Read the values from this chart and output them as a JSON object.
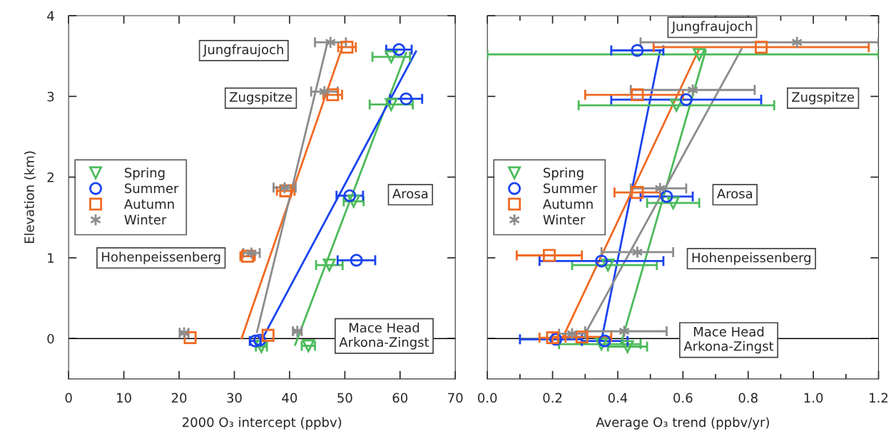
{
  "chart_data": [
    {
      "type": "scatter",
      "xlabel": "2000 O₃ intercept (ppbv)",
      "ylabel": "Elevation (km)",
      "xlim": [
        0,
        70
      ],
      "xticks": [
        0,
        10,
        20,
        30,
        40,
        50,
        60,
        70
      ],
      "ylim": [
        -0.5,
        4
      ],
      "yticks": [
        0,
        1,
        2,
        3,
        4
      ],
      "legend": "left",
      "grid": false,
      "ref_lines": [
        {
          "axis": "y",
          "value": 0,
          "color": "#000000"
        }
      ],
      "annotations": [
        "Jungfraujoch",
        "Zugspitze",
        "Arosa",
        "Hohenpeissenberg",
        "Mace Head\nArkona-Zingst"
      ],
      "series": [
        {
          "name": "Spring",
          "color": "#4cbb5a",
          "marker": "triangle",
          "x": [
            58.4,
            58.4,
            51.6,
            47.2,
            34.9,
            43.4
          ],
          "values": [
            3.49,
            2.9,
            1.7,
            0.91,
            -0.1,
            -0.09
          ],
          "xerrors": [
            3.4,
            3.9,
            1.8,
            2.4,
            1.0,
            1.2
          ]
        },
        {
          "name": "Summer",
          "color": "#1a43f0",
          "marker": "circle",
          "x": [
            59.8,
            61.1,
            50.9,
            52.1,
            33.8,
            34.6
          ],
          "values": [
            3.58,
            2.97,
            1.77,
            0.97,
            -0.03,
            -0.02
          ],
          "xerrors": [
            2.3,
            2.9,
            2.4,
            3.4,
            1.0,
            null
          ]
        },
        {
          "name": "Autumn",
          "color": "#f06a22",
          "marker": "square",
          "x": [
            50.4,
            47.8,
            39.3,
            32.4,
            22.0,
            36.1
          ],
          "values": [
            3.61,
            3.02,
            1.83,
            1.02,
            0.01,
            0.04
          ],
          "xerrors": [
            1.6,
            1.7,
            1.6,
            1.3,
            null,
            null
          ]
        },
        {
          "name": "Winter",
          "color": "#8c8c8c",
          "marker": "cross",
          "x": [
            47.4,
            46.3,
            39.1,
            33.1,
            20.9,
            41.4
          ],
          "values": [
            3.67,
            3.06,
            1.87,
            1.06,
            0.07,
            0.09
          ],
          "xerrors": [
            2.8,
            2.4,
            2.0,
            1.5,
            0.8,
            0.8
          ]
        },
        {
          "type": "line",
          "color": "#4cbb5a",
          "x": [
            41.0,
            61.1
          ],
          "values": [
            -0.08,
            3.54
          ]
        },
        {
          "type": "line",
          "color": "#1a43f0",
          "x": [
            35.4,
            62.9
          ],
          "values": [
            0.04,
            3.56
          ]
        },
        {
          "type": "line",
          "color": "#f06a22",
          "x": [
            31.3,
            49.5
          ],
          "values": [
            0.0,
            3.6
          ]
        },
        {
          "type": "line",
          "color": "#8c8c8c",
          "x": [
            34.1,
            46.8
          ],
          "values": [
            0.08,
            3.65
          ]
        }
      ]
    },
    {
      "type": "scatter",
      "xlabel": "Average O₃ trend (ppbv/yr)",
      "xlim": [
        0,
        1.2
      ],
      "xticks": [
        {
          "value": 0,
          "label": "0.0"
        },
        {
          "value": 0.1,
          "label": null
        },
        {
          "value": 0.2,
          "label": "0.2"
        },
        {
          "value": 0.3,
          "label": null
        },
        {
          "value": 0.4,
          "label": "0.4"
        },
        {
          "value": 0.5,
          "label": null
        },
        {
          "value": 0.6,
          "label": "0.6"
        },
        {
          "value": 0.7,
          "label": null
        },
        {
          "value": 0.8,
          "label": "0.8"
        },
        {
          "value": 0.9,
          "label": null
        },
        {
          "value": 1.0,
          "label": "1.0"
        },
        {
          "value": 1.1,
          "label": null
        },
        {
          "value": 1.2,
          "label": "1.2"
        }
      ],
      "ylim": [
        -0.5,
        4
      ],
      "yticks": [
        0,
        1,
        2,
        3,
        4
      ],
      "tick_labels": "x",
      "legend": "left",
      "grid": false,
      "ref_lines": [
        {
          "axis": "y",
          "value": 0,
          "color": "#000000"
        }
      ],
      "annotations": [
        "Jungfraujoch",
        "Zugspitze",
        "Arosa",
        "Hohenpeissenberg",
        "Mace Head\nArkona-Zingst"
      ],
      "series": [
        {
          "name": "Spring",
          "color": "#4cbb5a",
          "marker": "triangle",
          "x": [
            0.65,
            0.58,
            0.57,
            0.37,
            0.35,
            0.43
          ],
          "values": [
            3.52,
            2.89,
            1.68,
            0.91,
            -0.07,
            -0.1
          ],
          "xerrors": [
            [
              0.0,
              1.2
            ],
            [
              0.28,
              0.88
            ],
            [
              0.49,
              0.65
            ],
            [
              0.26,
              0.52
            ],
            [
              0.22,
              0.47
            ],
            [
              0.37,
              0.49
            ]
          ]
        },
        {
          "name": "Summer",
          "color": "#1a43f0",
          "marker": "circle",
          "x": [
            0.46,
            0.61,
            0.55,
            0.35,
            0.21,
            0.36
          ],
          "values": [
            3.57,
            2.96,
            1.76,
            0.96,
            -0.01,
            -0.03
          ],
          "xerrors": [
            [
              0.38,
              0.54
            ],
            [
              0.38,
              0.84
            ],
            [
              0.47,
              0.63
            ],
            [
              0.16,
              0.54
            ],
            [
              0.1,
              0.29
            ],
            [
              0.29,
              0.43
            ]
          ]
        },
        {
          "name": "Autumn",
          "color": "#f06a22",
          "marker": "square",
          "x": [
            0.84,
            0.46,
            0.46,
            0.19,
            0.2,
            0.29
          ],
          "values": [
            3.61,
            3.02,
            1.81,
            1.03,
            0.01,
            0.02
          ],
          "xerrors": [
            [
              0.51,
              1.17
            ],
            [
              0.3,
              0.6
            ],
            [
              0.39,
              0.53
            ],
            [
              0.09,
              0.29
            ],
            [
              0.16,
              0.24
            ],
            [
              0.2,
              0.38
            ]
          ]
        },
        {
          "name": "Winter",
          "color": "#8c8c8c",
          "marker": "cross",
          "x": [
            0.95,
            0.63,
            0.53,
            0.46,
            0.26,
            0.42
          ],
          "values": [
            3.67,
            3.08,
            1.86,
            1.07,
            0.06,
            0.09
          ],
          "xerrors": [
            [
              0.47,
              1.2
            ],
            [
              0.44,
              0.82
            ],
            [
              0.44,
              0.61
            ],
            [
              0.35,
              0.57
            ],
            [
              0.22,
              0.3
            ],
            [
              0.3,
              0.55
            ]
          ]
        },
        {
          "type": "line",
          "color": "#4cbb5a",
          "x": [
            0.41,
            0.67
          ],
          "values": [
            -0.06,
            3.57
          ]
        },
        {
          "type": "line",
          "color": "#1a43f0",
          "x": [
            0.35,
            0.53
          ],
          "values": [
            -0.02,
            3.57
          ]
        },
        {
          "type": "line",
          "color": "#f06a22",
          "x": [
            0.23,
            0.65
          ],
          "values": [
            0.0,
            3.59
          ]
        },
        {
          "type": "line",
          "color": "#8c8c8c",
          "x": [
            0.3,
            0.78
          ],
          "values": [
            0.06,
            3.59
          ]
        }
      ]
    }
  ]
}
